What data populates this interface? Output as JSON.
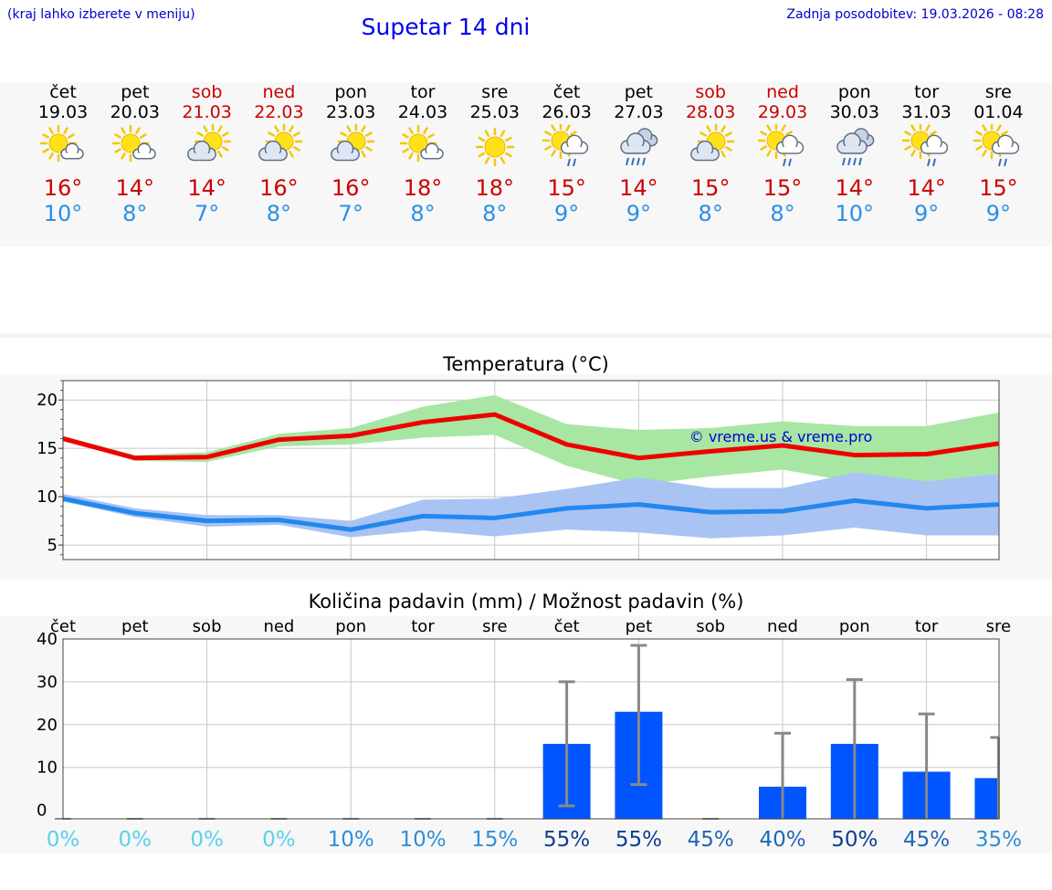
{
  "header": {
    "hint": "(kraj lahko izberete v meniju)",
    "title": "Supetar 14 dni",
    "updated": "Zadnja posodobitev: 19.03.2026 - 08:28"
  },
  "forecast": [
    {
      "day": "čet",
      "date": "19.03",
      "icon": "sun-cloud-icon",
      "max": "16°",
      "min": "10°",
      "weekend": false
    },
    {
      "day": "pet",
      "date": "20.03",
      "icon": "sun-cloud-icon",
      "max": "14°",
      "min": "8°",
      "weekend": false
    },
    {
      "day": "sob",
      "date": "21.03",
      "icon": "cloud-sun-icon",
      "max": "14°",
      "min": "7°",
      "weekend": true
    },
    {
      "day": "ned",
      "date": "22.03",
      "icon": "cloud-sun-icon",
      "max": "16°",
      "min": "8°",
      "weekend": true
    },
    {
      "day": "pon",
      "date": "23.03",
      "icon": "cloud-sun-icon",
      "max": "16°",
      "min": "7°",
      "weekend": false
    },
    {
      "day": "tor",
      "date": "24.03",
      "icon": "sun-cloud-icon",
      "max": "18°",
      "min": "8°",
      "weekend": false
    },
    {
      "day": "sre",
      "date": "25.03",
      "icon": "sun-icon",
      "max": "18°",
      "min": "8°",
      "weekend": false
    },
    {
      "day": "čet",
      "date": "26.03",
      "icon": "sun-rain-icon",
      "max": "15°",
      "min": "9°",
      "weekend": false
    },
    {
      "day": "pet",
      "date": "27.03",
      "icon": "heavy-rain-icon",
      "max": "14°",
      "min": "9°",
      "weekend": false
    },
    {
      "day": "sob",
      "date": "28.03",
      "icon": "cloud-sun-icon",
      "max": "15°",
      "min": "8°",
      "weekend": true
    },
    {
      "day": "ned",
      "date": "29.03",
      "icon": "sun-rain-icon",
      "max": "15°",
      "min": "8°",
      "weekend": true
    },
    {
      "day": "pon",
      "date": "30.03",
      "icon": "heavy-rain-icon",
      "max": "14°",
      "min": "10°",
      "weekend": false
    },
    {
      "day": "tor",
      "date": "31.03",
      "icon": "sun-rain-icon",
      "max": "14°",
      "min": "9°",
      "weekend": false
    },
    {
      "day": "sre",
      "date": "01.04",
      "icon": "sun-rain-icon",
      "max": "15°",
      "min": "9°",
      "weekend": false
    }
  ],
  "colors": {
    "max_line": "#ee0000",
    "max_band": "#a8e6a3",
    "min_line": "#2288ee",
    "min_band": "#a9c4f2",
    "bar": "#0055ff",
    "whisker": "#888888",
    "watermark": "#0000cc"
  },
  "chart_data": [
    {
      "type": "line",
      "title": "Temperatura (°C)",
      "watermark": "© vreme.us & vreme.pro",
      "x": [
        0,
        1,
        2,
        3,
        4,
        5,
        6,
        7,
        8,
        9,
        10,
        11,
        12,
        13
      ],
      "ylim": [
        3.5,
        22
      ],
      "yticks": [
        5,
        10,
        15,
        20
      ],
      "series": [
        {
          "name": "max",
          "values": [
            16,
            14,
            14.1,
            15.9,
            16.3,
            17.7,
            18.5,
            15.4,
            14,
            14.7,
            15.3,
            14.3,
            14.4,
            15.5
          ],
          "band_low": [
            15.9,
            13.7,
            13.6,
            15.2,
            15.4,
            16.1,
            16.4,
            13.2,
            11.2,
            12.1,
            12.8,
            11.5,
            11.6,
            12.4
          ],
          "band_high": [
            16.3,
            14.3,
            14.6,
            16.5,
            17.1,
            19.3,
            20.5,
            17.5,
            16.9,
            17.1,
            17.8,
            17.3,
            17.3,
            18.7
          ]
        },
        {
          "name": "min",
          "values": [
            9.8,
            8.3,
            7.5,
            7.6,
            6.6,
            8,
            7.8,
            8.8,
            9.2,
            8.4,
            8.5,
            9.6,
            8.8,
            9.2
          ],
          "band_low": [
            9.5,
            7.9,
            6.9,
            7.1,
            5.8,
            6.5,
            5.9,
            6.6,
            6.3,
            5.7,
            6,
            6.8,
            6,
            6
          ],
          "band_high": [
            10.3,
            8.8,
            8.1,
            8.1,
            7.5,
            9.7,
            9.8,
            10.8,
            12,
            10.9,
            10.9,
            12.5,
            11.6,
            12.4
          ]
        }
      ]
    },
    {
      "type": "bar",
      "title": "Količina padavin (mm) / Možnost padavin (%)",
      "categories": [
        "čet",
        "pet",
        "sob",
        "ned",
        "pon",
        "tor",
        "sre",
        "čet",
        "pet",
        "sob",
        "ned",
        "pon",
        "tor",
        "sre"
      ],
      "values": [
        0,
        0,
        0,
        0,
        0,
        0,
        0,
        15.5,
        23,
        0,
        5.5,
        15.5,
        9,
        7.5
      ],
      "error_low": [
        0,
        0,
        0,
        0,
        0,
        0,
        0,
        1,
        6,
        0,
        0,
        0,
        0,
        0
      ],
      "error_high": [
        0,
        0,
        0,
        0,
        0,
        0,
        0,
        30,
        38.5,
        0,
        18,
        30.5,
        22.5,
        17
      ],
      "ylim": [
        -2,
        40
      ],
      "yticks": [
        0,
        10,
        20,
        30,
        40
      ],
      "probability": [
        "0%",
        "0%",
        "0%",
        "0%",
        "10%",
        "10%",
        "15%",
        "55%",
        "55%",
        "45%",
        "40%",
        "50%",
        "45%",
        "35%"
      ]
    }
  ]
}
